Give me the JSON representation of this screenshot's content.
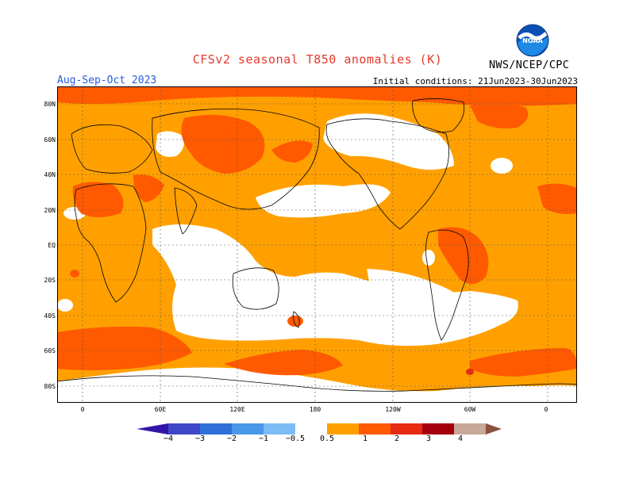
{
  "header": {
    "title": "CFSv2 seasonal T850 anomalies (K)",
    "season": "Aug-Sep-Oct 2023",
    "initial_conditions": "Initial conditions: 21Jun2023-30Jun2023",
    "agency": "NWS/NCEP/CPC",
    "logo_text": "NOAA"
  },
  "colors": {
    "title": "#e4392b",
    "season": "#2a5bd7",
    "ocean_neutral": "#ffffff",
    "coast": "#000000",
    "scale": [
      "#3316a8",
      "#3f47c9",
      "#2f6fd8",
      "#4a98ea",
      "#7bbcf4",
      "#ffffff",
      "#ffa000",
      "#ff5a00",
      "#e62b12",
      "#a5000e",
      "#c8a898",
      "#8a5040"
    ]
  },
  "map": {
    "lat_labels": [
      "80N",
      "60N",
      "40N",
      "20N",
      "EQ",
      "20S",
      "40S",
      "60S",
      "80S"
    ],
    "lon_labels": [
      "0",
      "60E",
      "120E",
      "180",
      "120W",
      "60W",
      "0"
    ]
  },
  "legend": {
    "labels": [
      "−4",
      "−3",
      "−2",
      "−1",
      "−0.5",
      "0.5",
      "1",
      "2",
      "3",
      "4"
    ]
  }
}
